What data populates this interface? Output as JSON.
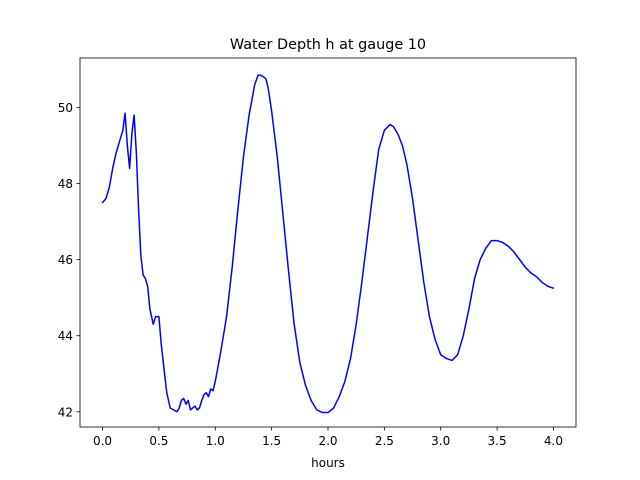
{
  "chart_data": {
    "type": "line",
    "title": "Water Depth h at gauge 10",
    "xlabel": "hours",
    "ylabel": "",
    "xlim": [
      -0.2,
      4.2
    ],
    "ylim": [
      41.6,
      51.3
    ],
    "xticks": [
      0.0,
      0.5,
      1.0,
      1.5,
      2.0,
      2.5,
      3.0,
      3.5,
      4.0
    ],
    "xtick_labels": [
      "0.0",
      "0.5",
      "1.0",
      "1.5",
      "2.0",
      "2.5",
      "3.0",
      "3.5",
      "4.0"
    ],
    "yticks": [
      42,
      44,
      46,
      48,
      50
    ],
    "ytick_labels": [
      "42",
      "44",
      "46",
      "48",
      "50"
    ],
    "grid": false,
    "series": [
      {
        "color": "#0000ff",
        "x": [
          0.0,
          0.03,
          0.06,
          0.09,
          0.12,
          0.15,
          0.18,
          0.2,
          0.22,
          0.24,
          0.26,
          0.28,
          0.3,
          0.32,
          0.34,
          0.36,
          0.38,
          0.4,
          0.42,
          0.45,
          0.47,
          0.5,
          0.52,
          0.55,
          0.57,
          0.6,
          0.63,
          0.66,
          0.68,
          0.7,
          0.72,
          0.74,
          0.76,
          0.78,
          0.8,
          0.82,
          0.84,
          0.86,
          0.88,
          0.9,
          0.92,
          0.94,
          0.96,
          0.98,
          1.0,
          1.05,
          1.1,
          1.15,
          1.2,
          1.25,
          1.3,
          1.35,
          1.38,
          1.4,
          1.43,
          1.45,
          1.47,
          1.5,
          1.55,
          1.6,
          1.65,
          1.7,
          1.75,
          1.8,
          1.85,
          1.9,
          1.95,
          2.0,
          2.05,
          2.1,
          2.15,
          2.2,
          2.25,
          2.3,
          2.35,
          2.4,
          2.45,
          2.5,
          2.55,
          2.58,
          2.62,
          2.66,
          2.7,
          2.75,
          2.8,
          2.85,
          2.9,
          2.95,
          3.0,
          3.05,
          3.1,
          3.15,
          3.2,
          3.25,
          3.3,
          3.35,
          3.4,
          3.45,
          3.5,
          3.55,
          3.6,
          3.65,
          3.7,
          3.75,
          3.8,
          3.85,
          3.9,
          3.95,
          4.0
        ],
        "y": [
          47.5,
          47.6,
          47.9,
          48.4,
          48.8,
          49.1,
          49.4,
          49.85,
          49.0,
          48.4,
          49.3,
          49.8,
          48.8,
          47.3,
          46.1,
          45.6,
          45.5,
          45.3,
          44.7,
          44.3,
          44.5,
          44.5,
          43.8,
          43.0,
          42.5,
          42.1,
          42.05,
          42.0,
          42.1,
          42.3,
          42.35,
          42.2,
          42.3,
          42.05,
          42.1,
          42.15,
          42.05,
          42.1,
          42.3,
          42.45,
          42.5,
          42.4,
          42.6,
          42.55,
          42.8,
          43.6,
          44.5,
          45.8,
          47.3,
          48.7,
          49.8,
          50.6,
          50.85,
          50.85,
          50.8,
          50.75,
          50.5,
          49.9,
          48.7,
          47.2,
          45.7,
          44.3,
          43.3,
          42.7,
          42.3,
          42.05,
          41.98,
          41.98,
          42.1,
          42.4,
          42.8,
          43.4,
          44.3,
          45.4,
          46.6,
          47.8,
          48.9,
          49.4,
          49.55,
          49.5,
          49.3,
          49.0,
          48.5,
          47.6,
          46.5,
          45.4,
          44.5,
          43.9,
          43.5,
          43.4,
          43.35,
          43.5,
          44.0,
          44.7,
          45.5,
          46.0,
          46.3,
          46.5,
          46.5,
          46.45,
          46.35,
          46.2,
          46.0,
          45.8,
          45.65,
          45.55,
          45.4,
          45.3,
          45.25
        ]
      }
    ]
  }
}
